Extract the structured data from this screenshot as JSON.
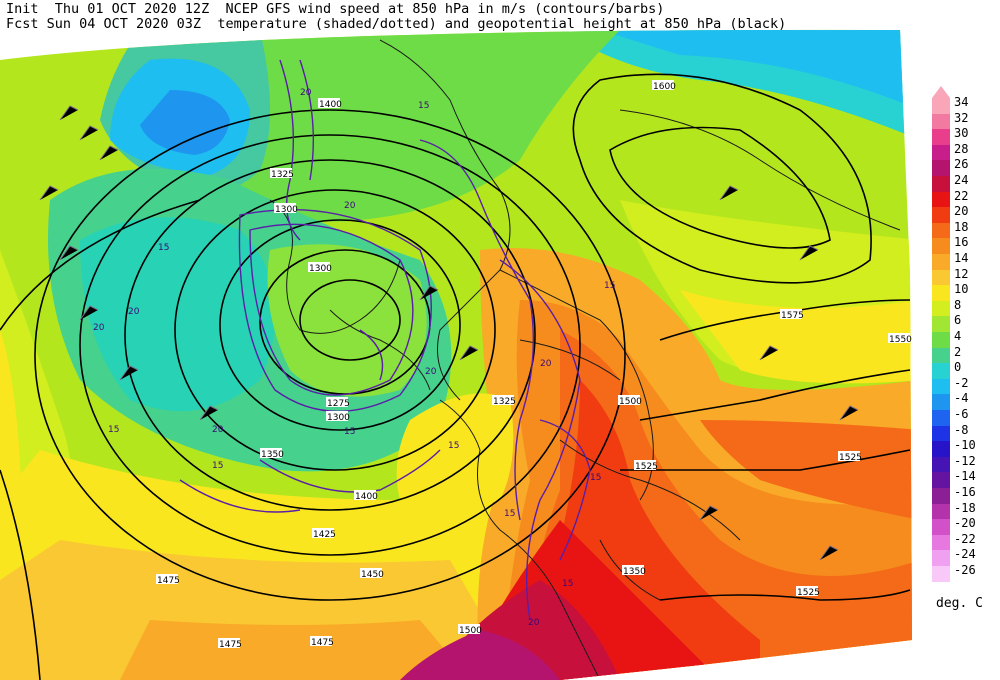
{
  "header": {
    "line1": "Init  Thu 01 OCT 2020 12Z  NCEP GFS wind speed at 850 hPa in m/s (contours/barbs)",
    "line2": "Fcst Sun 04 OCT 2020 03Z  temperature (shaded/dotted) and geopotential height at 850 hPa (black)"
  },
  "legend": {
    "units": "deg. C",
    "steps": [
      {
        "label": "34",
        "color": "#f8a6b8"
      },
      {
        "label": "32",
        "color": "#f27aa0"
      },
      {
        "label": "30",
        "color": "#e83e8c"
      },
      {
        "label": "28",
        "color": "#c81e8c"
      },
      {
        "label": "26",
        "color": "#b4146e"
      },
      {
        "label": "24",
        "color": "#c8103c"
      },
      {
        "label": "22",
        "color": "#e81414"
      },
      {
        "label": "20",
        "color": "#f03c10"
      },
      {
        "label": "18",
        "color": "#f46a18"
      },
      {
        "label": "16",
        "color": "#f68c1e"
      },
      {
        "label": "14",
        "color": "#f8aa28"
      },
      {
        "label": "12",
        "color": "#fac832"
      },
      {
        "label": "10",
        "color": "#fae61e"
      },
      {
        "label": "8",
        "color": "#d2ee1e"
      },
      {
        "label": "6",
        "color": "#a0e632"
      },
      {
        "label": "4",
        "color": "#6edc46"
      },
      {
        "label": "2",
        "color": "#46d28c"
      },
      {
        "label": "0",
        "color": "#28d2d2"
      },
      {
        "label": "-2",
        "color": "#1ebef0"
      },
      {
        "label": "-4",
        "color": "#1e96f0"
      },
      {
        "label": "-6",
        "color": "#1e64f0"
      },
      {
        "label": "-8",
        "color": "#1e32e6"
      },
      {
        "label": "-10",
        "color": "#2814c8"
      },
      {
        "label": "-12",
        "color": "#4614b4"
      },
      {
        "label": "-14",
        "color": "#6414a0"
      },
      {
        "label": "-16",
        "color": "#8c1e96"
      },
      {
        "label": "-18",
        "color": "#b432aa"
      },
      {
        "label": "-20",
        "color": "#d250c8"
      },
      {
        "label": "-22",
        "color": "#e678e0"
      },
      {
        "label": "-24",
        "color": "#f0a0f0"
      },
      {
        "label": "-26",
        "color": "#f8c8f8"
      }
    ]
  },
  "map_labels": {
    "height": [
      "1300",
      "1325",
      "1300",
      "1275",
      "1300",
      "1350",
      "1400",
      "1425",
      "1450",
      "1475",
      "1475",
      "1475",
      "1500",
      "1500",
      "1525",
      "1525",
      "1525",
      "1550",
      "1575",
      "1600",
      "1400",
      "1325",
      "1350"
    ],
    "wind": [
      "20",
      "15",
      "20",
      "20",
      "15",
      "20",
      "15",
      "15",
      "20",
      "15",
      "15",
      "20",
      "15",
      "15",
      "15",
      "20",
      "15",
      "20"
    ]
  }
}
